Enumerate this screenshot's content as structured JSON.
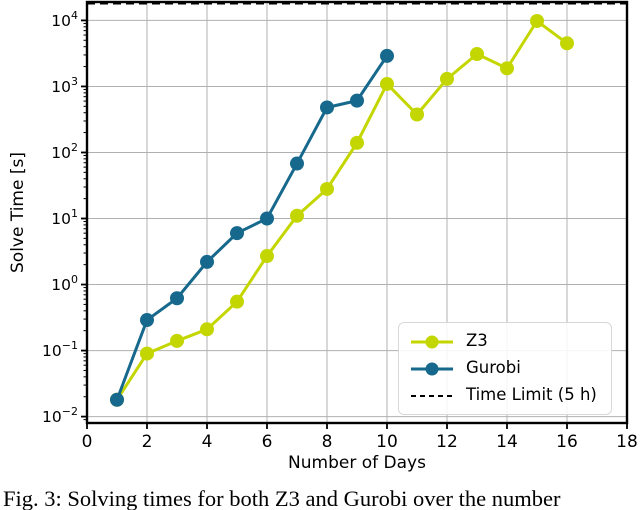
{
  "figure": {
    "caption": "Fig. 3: Solving times for both Z3 and Gurobi over the number"
  },
  "chart_data": {
    "type": "line",
    "title": "",
    "xlabel": "Number of Days",
    "ylabel": "Solve Time [s]",
    "x_scale": "linear",
    "y_scale": "log",
    "xlim": [
      0,
      18
    ],
    "ylim": [
      0.008,
      19000
    ],
    "x_ticks": [
      0,
      2,
      4,
      6,
      8,
      10,
      12,
      14,
      16,
      18
    ],
    "y_tick_exponents": [
      -2,
      -1,
      0,
      1,
      2,
      3,
      4
    ],
    "grid": true,
    "legend_position": "lower right",
    "series": [
      {
        "name": "Z3",
        "color": "#c4d600",
        "x": [
          1,
          2,
          3,
          4,
          5,
          6,
          7,
          8,
          9,
          10,
          11,
          12,
          13,
          14,
          15,
          16
        ],
        "y": [
          0.018,
          0.09,
          0.14,
          0.21,
          0.55,
          2.7,
          11,
          28,
          140,
          1090,
          376,
          1300,
          3100,
          1880,
          9800,
          4500
        ]
      },
      {
        "name": "Gurobi",
        "color": "#16698c",
        "x": [
          1,
          2,
          3,
          4,
          5,
          6,
          7,
          8,
          9,
          10
        ],
        "y": [
          0.018,
          0.29,
          0.62,
          2.2,
          6,
          10,
          68,
          480,
          610,
          2900
        ]
      }
    ],
    "time_limit": {
      "label": "Time Limit (5 h)",
      "seconds": 18000,
      "color": "#000000",
      "line_style": "dashed"
    }
  },
  "legend": {
    "items": [
      {
        "label": "Z3",
        "slug": "z3",
        "sample": "line-marker",
        "color": "#c4d600"
      },
      {
        "label": "Gurobi",
        "slug": "gurobi",
        "sample": "line-marker",
        "color": "#16698c"
      },
      {
        "label": "Time Limit (5 h)",
        "slug": "time-limit",
        "sample": "dashed-line",
        "color": "#000000"
      }
    ]
  },
  "colors": {
    "grid": "#b0b0b0",
    "axes": "#000000",
    "background": "#ffffff"
  }
}
